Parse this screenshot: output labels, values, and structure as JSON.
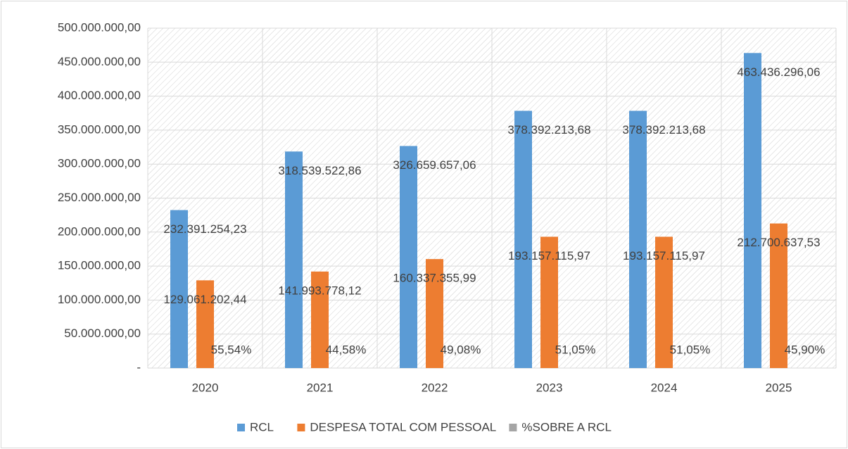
{
  "chart_data": {
    "type": "bar",
    "categories": [
      "2020",
      "2021",
      "2022",
      "2023",
      "2024",
      "2025"
    ],
    "series": [
      {
        "name": "RCL",
        "color": "#5b9bd5",
        "values": [
          232391254.23,
          318539522.86,
          326659657.06,
          378392213.68,
          378392213.68,
          463436296.06
        ],
        "value_labels": [
          "232.391.254,23",
          "318.539.522,86",
          "326.659.657,06",
          "378.392.213,68",
          "378.392.213,68",
          "463.436.296,06"
        ]
      },
      {
        "name": "DESPESA TOTAL COM PESSOAL",
        "color": "#ed7d31",
        "values": [
          129061202.44,
          141993778.12,
          160337355.99,
          193157115.97,
          193157115.97,
          212700637.53
        ],
        "value_labels": [
          "129.061.202,44",
          "141.993.778,12",
          "160.337.355,99",
          "193.157.115,97",
          "193.157.115,97",
          "212.700.637,53"
        ]
      },
      {
        "name": "%SOBRE A RCL",
        "color": "#a5a5a5",
        "values": [
          55.54,
          44.58,
          49.08,
          51.05,
          51.05,
          45.9
        ],
        "value_labels": [
          "55,54%",
          "44,58%",
          "49,08%",
          "51,05%",
          "51,05%",
          "45,90%"
        ]
      }
    ],
    "ylim": [
      0,
      500000000
    ],
    "yticks": [
      {
        "value": 0,
        "label": "-"
      },
      {
        "value": 50000000,
        "label": "50.000.000,00"
      },
      {
        "value": 100000000,
        "label": "100.000.000,00"
      },
      {
        "value": 150000000,
        "label": "150.000.000,00"
      },
      {
        "value": 200000000,
        "label": "200.000.000,00"
      },
      {
        "value": 250000000,
        "label": "250.000.000,00"
      },
      {
        "value": 300000000,
        "label": "300.000.000,00"
      },
      {
        "value": 350000000,
        "label": "350.000.000,00"
      },
      {
        "value": 400000000,
        "label": "400.000.000,00"
      },
      {
        "value": 450000000,
        "label": "450.000.000,00"
      },
      {
        "value": 500000000,
        "label": "500.000.000,00"
      }
    ],
    "grid": true,
    "legend": "bottom"
  }
}
